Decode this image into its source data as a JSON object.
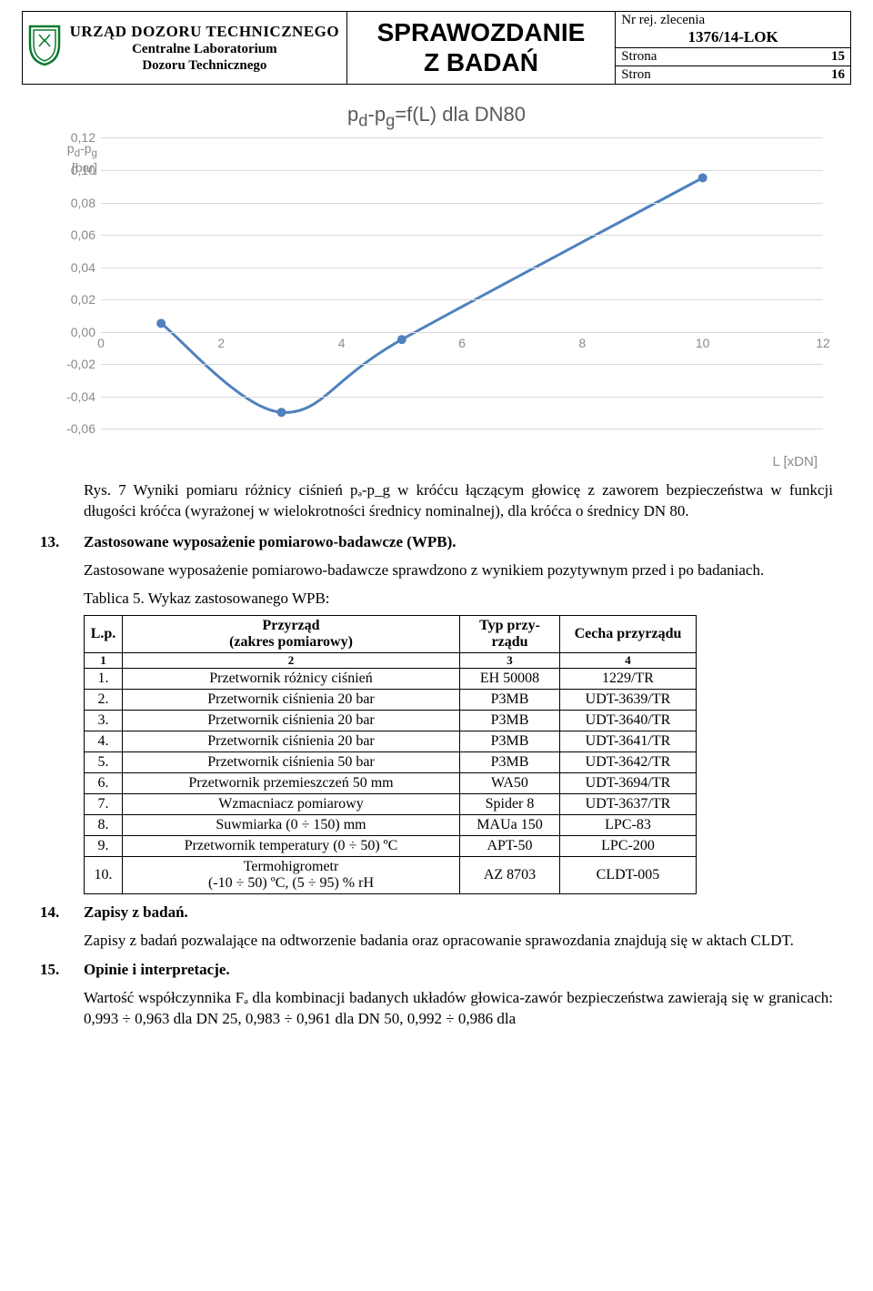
{
  "header": {
    "org_main": "URZĄD DOZORU TECHNICZNEGO",
    "org_sub1": "Centralne Laboratorium",
    "org_sub2": "Dozoru Technicznego",
    "title1": "SPRAWOZDANIE",
    "title2": "Z BADAŃ",
    "nr_label": "Nr rej. zlecenia",
    "nr_value": "1376/14-LOK",
    "page_label": "Strona",
    "page_value": "15",
    "pages_label": "Stron",
    "pages_value": "16"
  },
  "chart": {
    "title": "pₔ-p_g=f(L) dla DN80",
    "type": "line",
    "y_axis_label_1": "pₔ-p_g",
    "y_axis_label_2": "[bar]",
    "x_axis_label": "L [xDN]",
    "ylim": [
      -0.06,
      0.12
    ],
    "xlim": [
      0,
      12
    ],
    "yticks": [
      "0,12",
      "0,10",
      "0,08",
      "0,06",
      "0,04",
      "0,02",
      "0,00",
      "-0,02",
      "-0,04",
      "-0,06"
    ],
    "ytick_values": [
      0.12,
      0.1,
      0.08,
      0.06,
      0.04,
      0.02,
      0.0,
      -0.02,
      -0.04,
      -0.06
    ],
    "xticks": [
      "0",
      "2",
      "4",
      "6",
      "8",
      "10",
      "12"
    ],
    "xtick_values": [
      0,
      2,
      4,
      6,
      8,
      10,
      12
    ],
    "line_color": "#4f81bd",
    "marker_color": "#4f81bd",
    "grid_color": "#d9d9d9",
    "background_color": "#ffffff",
    "line_width": 3,
    "marker_radius": 5,
    "points": [
      {
        "x": 1,
        "y": 0.005
      },
      {
        "x": 3,
        "y": -0.05
      },
      {
        "x": 5,
        "y": -0.005
      },
      {
        "x": 10,
        "y": 0.095
      }
    ]
  },
  "caption": "Rys. 7 Wyniki pomiaru różnicy ciśnień pₔ-p_g w króćcu łączącym głowicę z zaworem bezpieczeństwa w funkcji długości króćca (wyrażonej w wielokrotności średnicy nominalnej), dla króćca o średnicy DN 80.",
  "sec13_num": "13.",
  "sec13_title": "Zastosowane wyposażenie pomiarowo-badawcze (WPB).",
  "sec13_body": "Zastosowane wyposażenie pomiarowo-badawcze sprawdzono z wynikiem pozytywnym przed i po badaniach.",
  "table": {
    "caption": "Tablica 5. Wykaz zastosowanego WPB:",
    "headers": {
      "lp": "L.p.",
      "instr": "Przyrząd\n(zakres pomiarowy)",
      "type": "Typ przy-\nrządu",
      "cecha": "Cecha przyrządu"
    },
    "header_nums": [
      "1",
      "2",
      "3",
      "4"
    ],
    "rows": [
      {
        "lp": "1.",
        "instr": "Przetwornik różnicy ciśnień",
        "type": "EH 50008",
        "cecha": "1229/TR"
      },
      {
        "lp": "2.",
        "instr": "Przetwornik ciśnienia 20 bar",
        "type": "P3MB",
        "cecha": "UDT-3639/TR"
      },
      {
        "lp": "3.",
        "instr": "Przetwornik ciśnienia 20 bar",
        "type": "P3MB",
        "cecha": "UDT-3640/TR"
      },
      {
        "lp": "4.",
        "instr": "Przetwornik ciśnienia 20 bar",
        "type": "P3MB",
        "cecha": "UDT-3641/TR"
      },
      {
        "lp": "5.",
        "instr": "Przetwornik ciśnienia 50 bar",
        "type": "P3MB",
        "cecha": "UDT-3642/TR"
      },
      {
        "lp": "6.",
        "instr": "Przetwornik przemieszczeń 50 mm",
        "type": "WA50",
        "cecha": "UDT-3694/TR"
      },
      {
        "lp": "7.",
        "instr": "Wzmacniacz pomiarowy",
        "type": "Spider 8",
        "cecha": "UDT-3637/TR"
      },
      {
        "lp": "8.",
        "instr": "Suwmiarka (0 ÷ 150) mm",
        "type": "MAUa 150",
        "cecha": "LPC-83"
      },
      {
        "lp": "9.",
        "instr": "Przetwornik temperatury (0 ÷ 50) ºC",
        "type": "APT-50",
        "cecha": "LPC-200"
      },
      {
        "lp": "10.",
        "instr": "Termohigrometr\n(-10 ÷ 50) ºC,      (5 ÷ 95) % rH",
        "type": "AZ 8703",
        "cecha": "CLDT-005"
      }
    ]
  },
  "sec14_num": "14.",
  "sec14_title": "Zapisy z badań.",
  "sec14_body": "Zapisy z badań pozwalające na odtworzenie badania oraz opracowanie sprawozdania znajdują się w aktach CLDT.",
  "sec15_num": "15.",
  "sec15_title": "Opinie i interpretacje.",
  "sec15_body": "Wartość współczynnika Fₔ dla kombinacji badanych układów głowica-zawór bezpieczeństwa zawierają się w granicach: 0,993 ÷ 0,963 dla DN 25, 0,983 ÷ 0,961 dla DN 50, 0,992 ÷ 0,986 dla"
}
